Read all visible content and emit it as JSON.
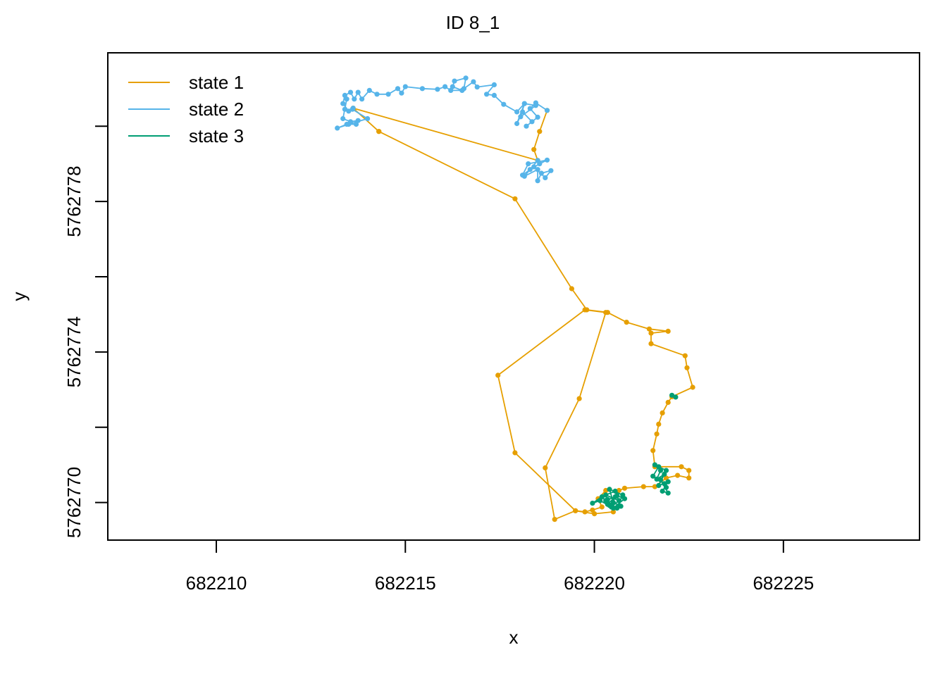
{
  "chart_data": {
    "type": "line",
    "title": "ID 8_1",
    "xlabel": "x",
    "ylabel": "y",
    "xlim": [
      682207.13,
      682228.6
    ],
    "ylim": [
      5762769.0,
      5762781.95
    ],
    "xticks": [
      682210,
      682215,
      682220,
      682225
    ],
    "xtick_labels": [
      "682210",
      "682215",
      "682220",
      "682225"
    ],
    "yticks": [
      5762770,
      5762772,
      5762774,
      5762776,
      5762778,
      5762780
    ],
    "ytick_labels": [
      "5762770",
      "",
      "5762774",
      "",
      "5762778",
      ""
    ],
    "grid": false,
    "legend_position": "top-left",
    "legend": [
      {
        "label": "state 1",
        "color": "#E69F00"
      },
      {
        "label": "state 2",
        "color": "#56B4E9"
      },
      {
        "label": "state 3",
        "color": "#009E73"
      }
    ],
    "series": [
      {
        "name": "state 1",
        "color": "#E69F00",
        "points": [
          [
            682218.75,
            5762780.42
          ],
          [
            682218.55,
            5762779.86
          ],
          [
            682218.4,
            5762779.38
          ],
          [
            682218.5,
            5762779.09
          ],
          [
            682213.62,
            5762780.48
          ],
          [
            682214.3,
            5762779.86
          ]
        ]
      },
      {
        "name": "state 1",
        "color": "#E69F00",
        "points": [
          [
            682214.3,
            5762779.86
          ],
          [
            682217.9,
            5762778.07
          ],
          [
            682219.4,
            5762775.68
          ],
          [
            682219.8,
            5762775.12
          ],
          [
            682220.35,
            5762775.05
          ],
          [
            682220.85,
            5762774.79
          ],
          [
            682221.45,
            5762774.61
          ],
          [
            682221.95,
            5762774.55
          ],
          [
            682221.5,
            5762774.5
          ],
          [
            682221.5,
            5762774.22
          ],
          [
            682222.4,
            5762773.9
          ],
          [
            682222.45,
            5762773.58
          ],
          [
            682222.6,
            5762773.06
          ],
          [
            682222.05,
            5762772.81
          ],
          [
            682221.95,
            5762772.66
          ],
          [
            682221.8,
            5762772.38
          ],
          [
            682221.7,
            5762772.08
          ],
          [
            682221.65,
            5762771.82
          ],
          [
            682221.55,
            5762771.38
          ],
          [
            682221.6,
            5762770.95
          ],
          [
            682222.3,
            5762770.95
          ],
          [
            682222.5,
            5762770.85
          ],
          [
            682222.5,
            5762770.65
          ],
          [
            682222.2,
            5762770.72
          ],
          [
            682221.9,
            5762770.65
          ],
          [
            682221.6,
            5762770.42
          ],
          [
            682221.3,
            5762770.42
          ],
          [
            682220.8,
            5762770.38
          ],
          [
            682220.65,
            5762770.32
          ],
          [
            682220.3,
            5762770.32
          ],
          [
            682220.1,
            5762770.1
          ],
          [
            682220.2,
            5762769.88
          ],
          [
            682219.95,
            5762769.8
          ],
          [
            682219.75,
            5762769.75
          ],
          [
            682219.5,
            5762769.78
          ],
          [
            682218.95,
            5762769.55
          ],
          [
            682218.7,
            5762770.92
          ],
          [
            682219.6,
            5762772.76
          ],
          [
            682220.3,
            5762775.05
          ],
          [
            682219.75,
            5762775.12
          ],
          [
            682217.45,
            5762773.38
          ],
          [
            682217.9,
            5762771.32
          ],
          [
            682219.5,
            5762769.78
          ],
          [
            682220.0,
            5762769.7
          ],
          [
            682220.5,
            5762769.75
          ]
        ]
      },
      {
        "name": "state 2",
        "color": "#56B4E9",
        "points": [
          [
            682218.5,
            5762779.09
          ],
          [
            682218.15,
            5762778.67
          ],
          [
            682218.5,
            5762778.85
          ],
          [
            682218.5,
            5762778.55
          ],
          [
            682218.6,
            5762778.75
          ],
          [
            682218.85,
            5762778.82
          ],
          [
            682218.7,
            5762778.63
          ],
          [
            682218.4,
            5762778.92
          ],
          [
            682218.1,
            5762778.7
          ],
          [
            682218.25,
            5762779.0
          ],
          [
            682218.75,
            5762779.1
          ],
          [
            682218.55,
            5762779.0
          ],
          [
            682218.3,
            5762778.85
          ]
        ]
      },
      {
        "name": "state 2",
        "color": "#56B4E9",
        "points": [
          [
            682218.75,
            5762780.42
          ],
          [
            682218.45,
            5762780.62
          ],
          [
            682218.3,
            5762780.47
          ],
          [
            682218.5,
            5762780.24
          ],
          [
            682218.2,
            5762780.0
          ],
          [
            682218.35,
            5762780.12
          ],
          [
            682218.1,
            5762780.38
          ],
          [
            682217.95,
            5762780.07
          ],
          [
            682218.15,
            5762780.6
          ],
          [
            682218.05,
            5762780.25
          ],
          [
            682218.45,
            5762780.55
          ],
          [
            682218.15,
            5762780.6
          ],
          [
            682217.95,
            5762780.38
          ],
          [
            682217.6,
            5762780.58
          ],
          [
            682217.35,
            5762780.82
          ],
          [
            682217.15,
            5762780.85
          ],
          [
            682217.35,
            5762781.1
          ],
          [
            682216.9,
            5762781.04
          ],
          [
            682216.8,
            5762781.18
          ],
          [
            682216.55,
            5762781.0
          ],
          [
            682216.6,
            5762781.28
          ],
          [
            682216.3,
            5762781.2
          ],
          [
            682216.25,
            5762781.05
          ],
          [
            682216.5,
            5762780.95
          ],
          [
            682216.2,
            5762780.95
          ],
          [
            682216.05,
            5762781.05
          ],
          [
            682215.85,
            5762780.98
          ],
          [
            682215.45,
            5762781.0
          ],
          [
            682215.0,
            5762781.05
          ],
          [
            682214.9,
            5762780.88
          ],
          [
            682214.8,
            5762781.0
          ],
          [
            682214.55,
            5762780.85
          ],
          [
            682214.25,
            5762780.85
          ],
          [
            682214.05,
            5762780.95
          ],
          [
            682213.85,
            5762780.72
          ],
          [
            682213.75,
            5762780.9
          ],
          [
            682213.65,
            5762780.72
          ],
          [
            682213.55,
            5762780.9
          ],
          [
            682213.4,
            5762780.82
          ],
          [
            682213.35,
            5762780.6
          ],
          [
            682213.5,
            5762780.4
          ],
          [
            682213.4,
            5762780.45
          ],
          [
            682213.45,
            5762780.72
          ],
          [
            682213.35,
            5762780.2
          ],
          [
            682213.55,
            5762780.12
          ],
          [
            682213.75,
            5762780.15
          ],
          [
            682213.7,
            5762780.05
          ],
          [
            682213.45,
            5762780.05
          ],
          [
            682213.2,
            5762779.95
          ],
          [
            682213.5,
            5762780.05
          ],
          [
            682214.0,
            5762780.2
          ],
          [
            682213.6,
            5762780.45
          ],
          [
            682213.62,
            5762780.48
          ]
        ]
      },
      {
        "name": "state 3",
        "color": "#009E73",
        "points": [
          [
            682220.35,
            5762769.95
          ],
          [
            682220.55,
            5762770.15
          ],
          [
            682220.3,
            5762770.05
          ],
          [
            682220.6,
            5762769.85
          ],
          [
            682220.75,
            5762770.2
          ],
          [
            682220.4,
            5762770.35
          ],
          [
            682220.5,
            5762770.0
          ],
          [
            682220.7,
            5762769.9
          ],
          [
            682220.55,
            5762770.3
          ],
          [
            682220.3,
            5762770.2
          ],
          [
            682220.65,
            5762770.05
          ],
          [
            682220.45,
            5762769.88
          ],
          [
            682220.15,
            5762770.05
          ],
          [
            682219.95,
            5762769.98
          ],
          [
            682220.2,
            5762770.15
          ],
          [
            682220.4,
            5762769.92
          ],
          [
            682220.6,
            5762770.18
          ],
          [
            682220.8,
            5762770.1
          ],
          [
            682220.5,
            5762769.85
          ],
          [
            682220.35,
            5762770.08
          ]
        ]
      },
      {
        "name": "state 3",
        "color": "#009E73",
        "points": [
          [
            682221.6,
            5762771.0
          ],
          [
            682221.75,
            5762770.85
          ],
          [
            682221.65,
            5762770.62
          ],
          [
            682221.85,
            5762770.75
          ],
          [
            682221.7,
            5762770.45
          ],
          [
            682221.95,
            5762770.55
          ],
          [
            682221.8,
            5762770.3
          ],
          [
            682221.95,
            5762770.25
          ],
          [
            682221.75,
            5762770.6
          ],
          [
            682221.9,
            5762770.85
          ],
          [
            682221.7,
            5762770.95
          ],
          [
            682221.55,
            5762770.7
          ],
          [
            682221.85,
            5762770.5
          ],
          [
            682221.9,
            5762770.4
          ]
        ]
      },
      {
        "name": "state 3",
        "color": "#009E73",
        "points": [
          [
            682222.05,
            5762772.85
          ],
          [
            682222.15,
            5762772.8
          ]
        ]
      }
    ]
  }
}
